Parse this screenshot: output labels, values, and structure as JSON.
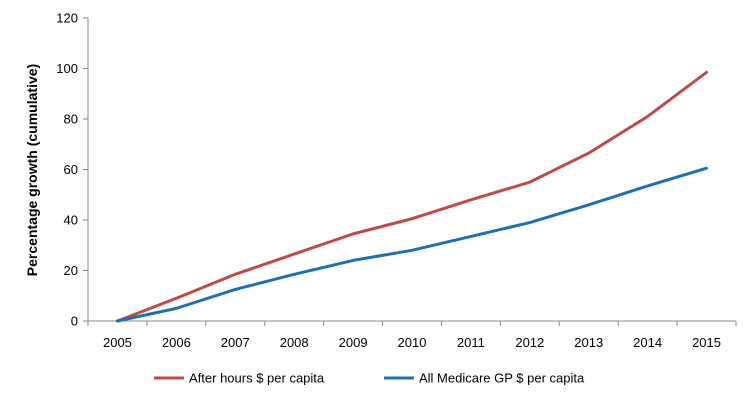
{
  "chart_data": {
    "type": "line",
    "x": [
      "2005",
      "2006",
      "2007",
      "2008",
      "2009",
      "2010",
      "2011",
      "2012",
      "2013",
      "2014",
      "2015"
    ],
    "ylabel": "Percentage growth (cumulative)",
    "ylim": [
      0,
      120
    ],
    "yticks": [
      0,
      20,
      40,
      60,
      80,
      100,
      120
    ],
    "grid": false,
    "legend_position": "bottom",
    "series": [
      {
        "name": "After hours $ per capita",
        "color": "#BE4B48",
        "values": [
          0,
          9,
          18.5,
          26.5,
          34.5,
          40.5,
          48,
          55,
          66.5,
          81,
          98.5
        ]
      },
      {
        "name": "All Medicare GP $ per capita",
        "color": "#1F6FB1",
        "values": [
          0,
          5,
          12.5,
          18.5,
          24,
          28,
          33.5,
          39,
          46,
          53.5,
          60.5
        ]
      }
    ]
  }
}
